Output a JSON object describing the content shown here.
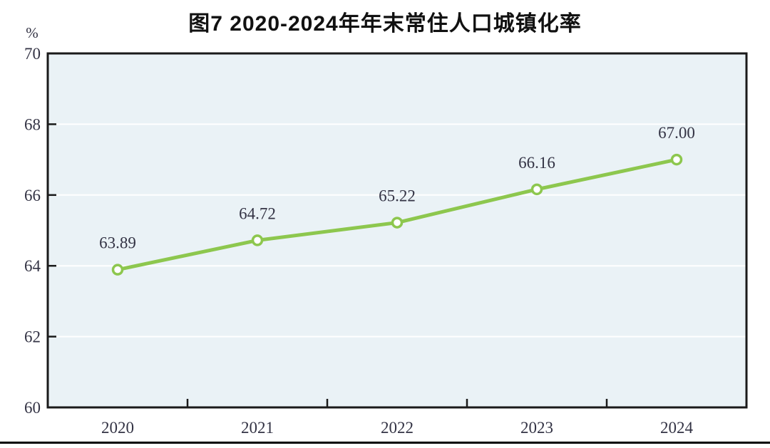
{
  "chart_data": {
    "type": "line",
    "title": "图7  2020-2024年年末常住人口城镇化率",
    "unit_label": "%",
    "xlabel": "",
    "ylabel": "%",
    "categories": [
      "2020",
      "2021",
      "2022",
      "2023",
      "2024"
    ],
    "series": [
      {
        "name": "年末常住人口城镇化率",
        "values": [
          63.89,
          64.72,
          65.22,
          66.16,
          67.0
        ],
        "point_labels": [
          "63.89",
          "64.72",
          "65.22",
          "66.16",
          "67.00"
        ]
      }
    ],
    "ylim": [
      60,
      70
    ],
    "yticks": [
      "70",
      "68",
      "66",
      "64",
      "62",
      "60"
    ],
    "grid": "horizontal",
    "legend": "none",
    "colors": {
      "line": "#8DC74E",
      "marker_fill": "#FFFFFF",
      "marker_stroke": "#8DC74E",
      "plot_background": "#EAF2F6",
      "gridline": "#FFFFFF",
      "axis": "#1A1A1A",
      "tick_text": "#333344",
      "title_text": "#111111",
      "bottom_rule": "#000000"
    }
  }
}
